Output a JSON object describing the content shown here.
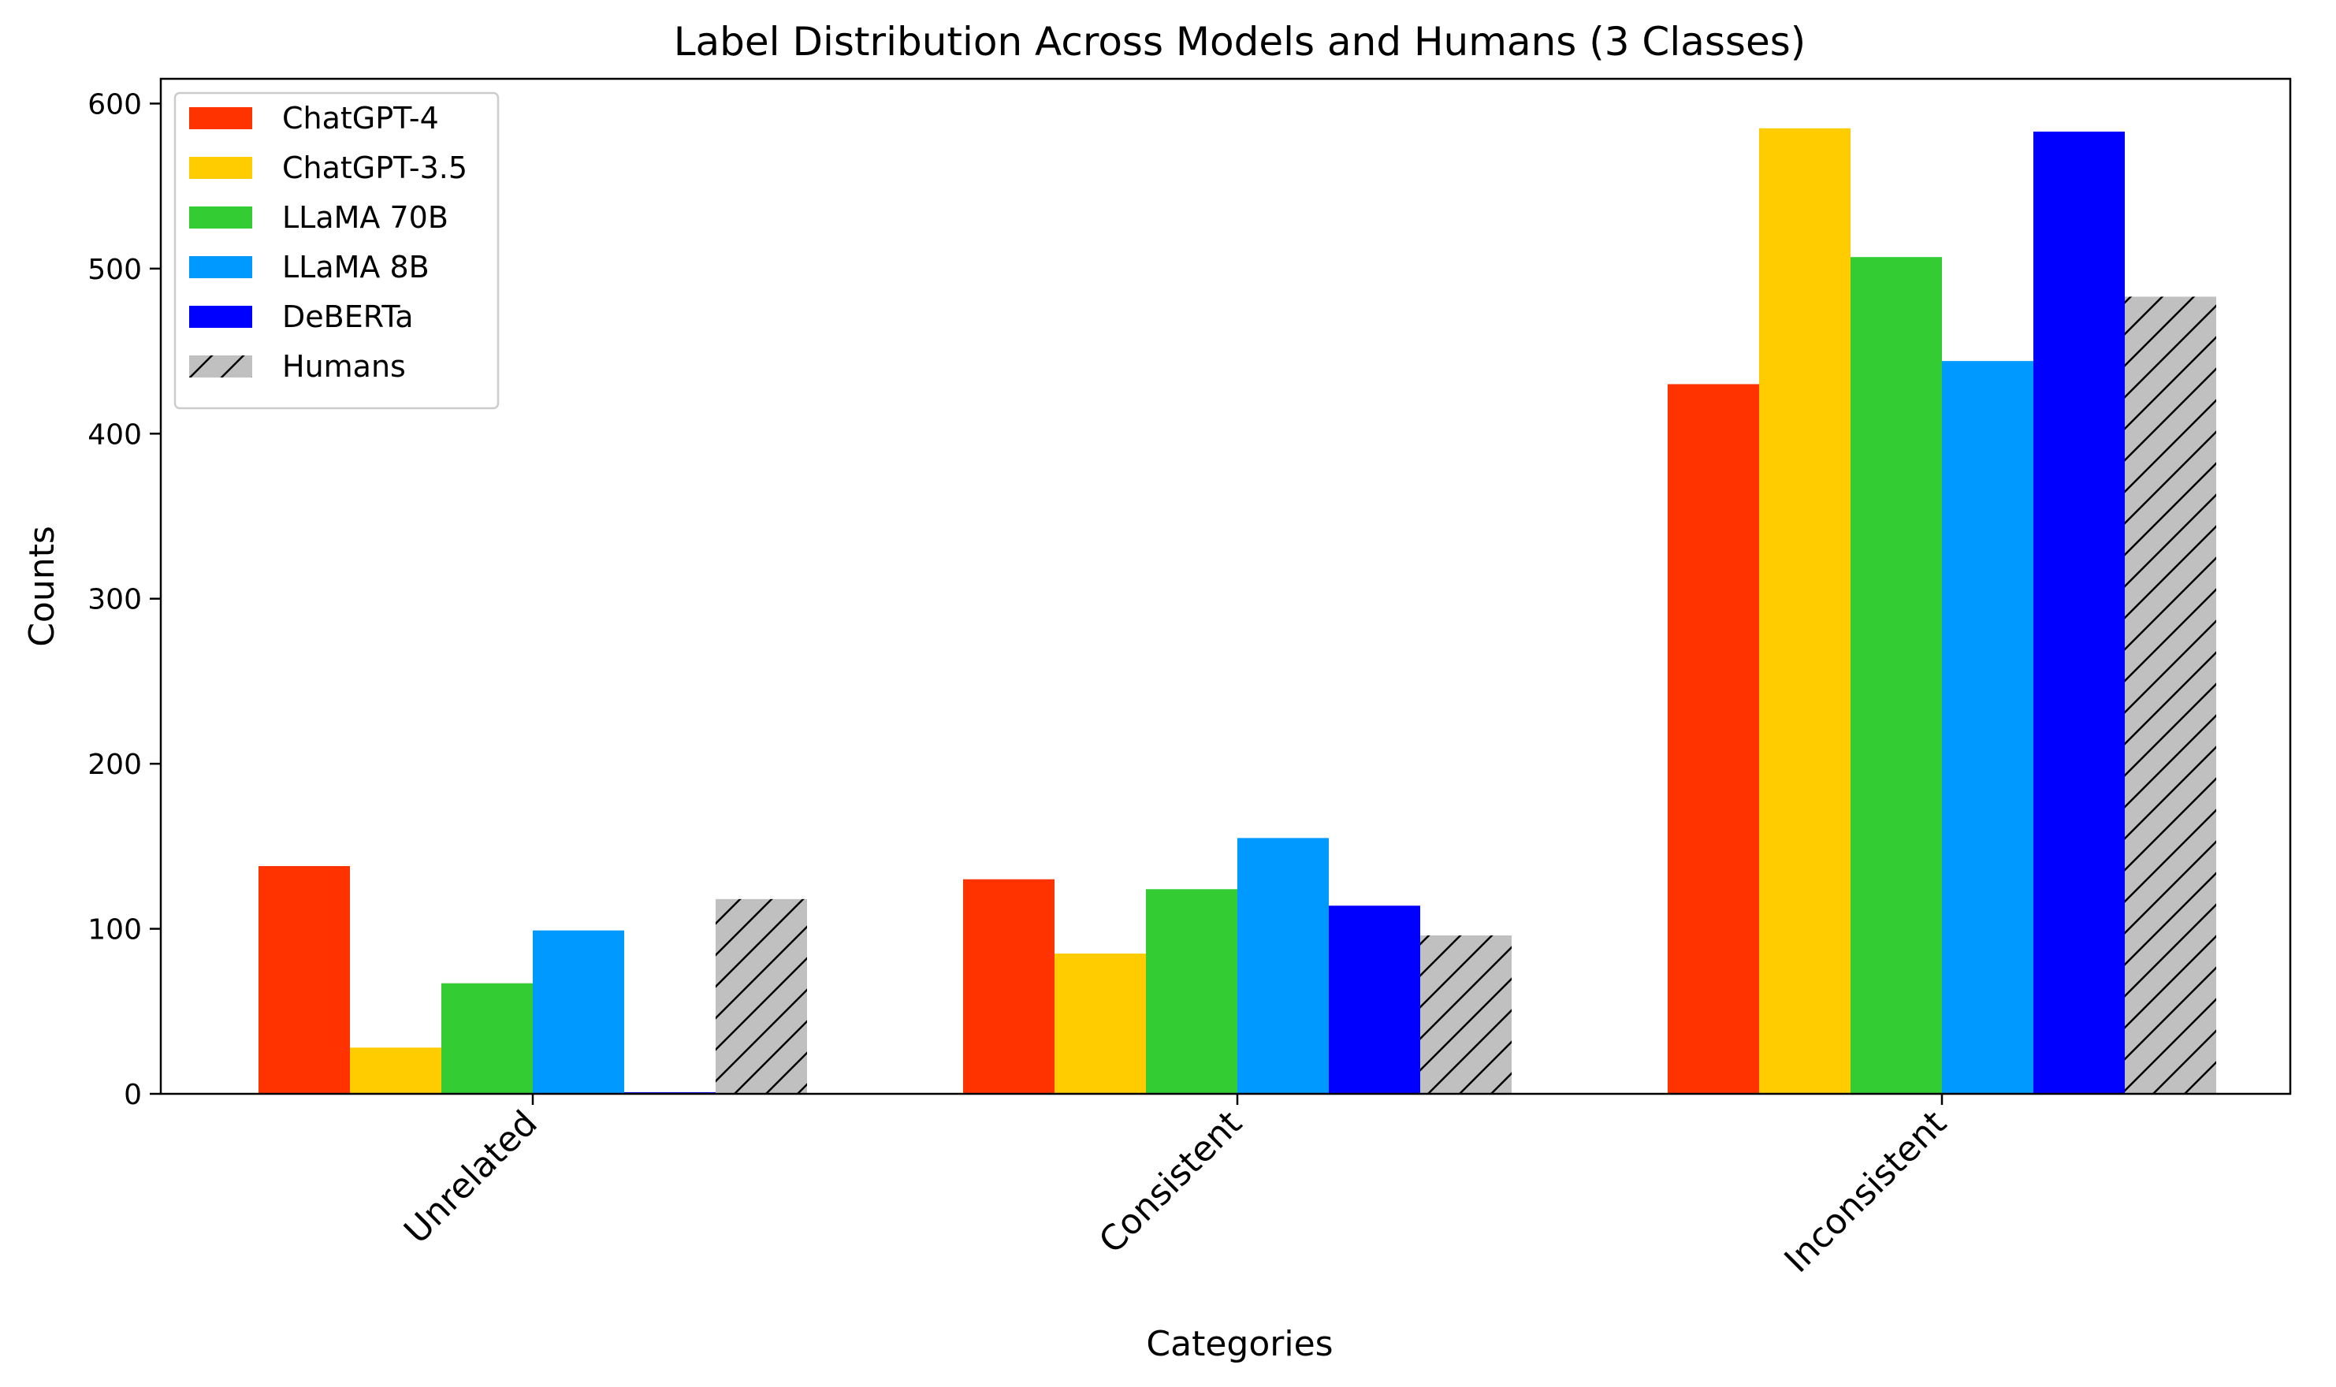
{
  "chart_data": {
    "type": "bar",
    "title": "Label Distribution Across Models and Humans (3 Classes)",
    "xlabel": "Categories",
    "ylabel": "Counts",
    "categories": [
      "Unrelated",
      "Consistent",
      "Inconsistent"
    ],
    "yticks": [
      0,
      100,
      200,
      300,
      400,
      500,
      600
    ],
    "ylim": [
      0,
      615
    ],
    "grid": false,
    "legend_position": "top-left",
    "series": [
      {
        "name": "ChatGPT-4",
        "values": [
          138,
          130,
          430
        ],
        "color": "#ff3300",
        "hatch": false
      },
      {
        "name": "ChatGPT-3.5",
        "values": [
          28,
          85,
          585
        ],
        "color": "#ffcc00",
        "hatch": false
      },
      {
        "name": "LLaMA 70B",
        "values": [
          67,
          124,
          507
        ],
        "color": "#33cc33",
        "hatch": false
      },
      {
        "name": "LLaMA 8B",
        "values": [
          99,
          155,
          444
        ],
        "color": "#0099ff",
        "hatch": false
      },
      {
        "name": "DeBERTa",
        "values": [
          1,
          114,
          583
        ],
        "color": "#0000ff",
        "hatch": false
      },
      {
        "name": "Humans",
        "values": [
          118,
          96,
          483
        ],
        "color": "#c0c0c0",
        "hatch": true
      }
    ]
  }
}
